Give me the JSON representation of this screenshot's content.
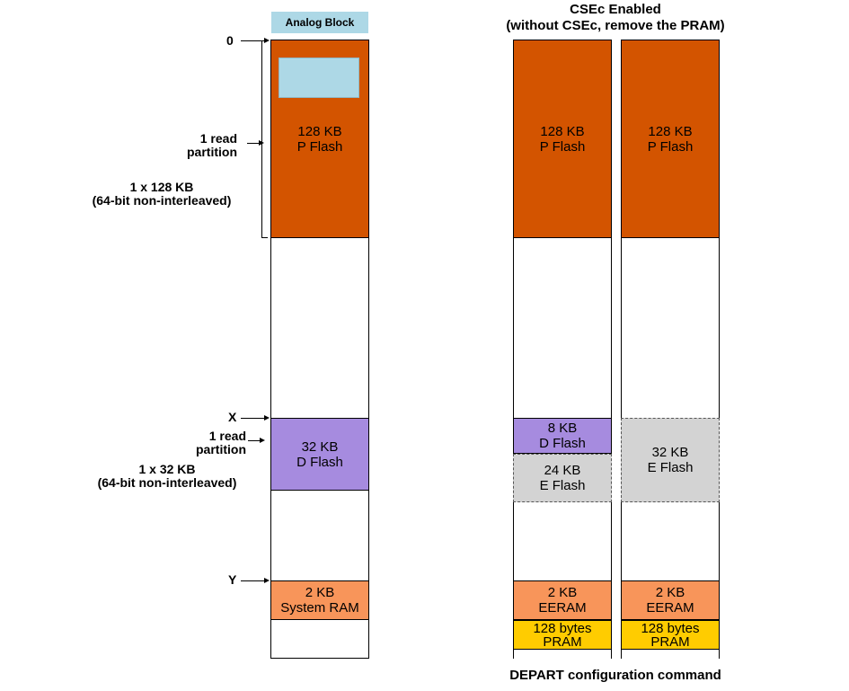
{
  "colors": {
    "pflash": "#d35400",
    "dflash": "#a68bdf",
    "eflash": "#d3d3d3",
    "ram": "#f8955a",
    "pram": "#ffcc00",
    "analog": "#add8e6"
  },
  "header": {
    "analog_block": "Analog Block",
    "csec_title": "CSEc Enabled",
    "csec_subtitle": "(without CSEc, remove the PRAM)"
  },
  "markers": {
    "zero": "0",
    "x": "X",
    "y": "Y"
  },
  "annotations": {
    "pflash_partition_l1": "1 read",
    "pflash_partition_l2": "partition",
    "pflash_size_l1": "1 x 128 KB",
    "pflash_size_l2": "(64-bit non-interleaved)",
    "dflash_partition_l1": "1 read",
    "dflash_partition_l2": "partition",
    "dflash_size_l1": "1 x 32 KB",
    "dflash_size_l2": "(64-bit non-interleaved)"
  },
  "left_column": {
    "pflash_size": "128 KB",
    "pflash_name": "P Flash",
    "dflash_size": "32 KB",
    "dflash_name": "D Flash",
    "ram_size": "2 KB",
    "ram_name": "System RAM"
  },
  "middle_column": {
    "pflash_size": "128 KB",
    "pflash_name": "P Flash",
    "dflash_size": "8 KB",
    "dflash_name": "D Flash",
    "eflash_size": "24 KB",
    "eflash_name": "E Flash",
    "eeram_size": "2 KB",
    "eeram_name": "EERAM",
    "pram_size": "128 bytes",
    "pram_name": "PRAM"
  },
  "right_column": {
    "pflash_size": "128 KB",
    "pflash_name": "P Flash",
    "eflash_size": "32 KB",
    "eflash_name": "E Flash",
    "eeram_size": "2 KB",
    "eeram_name": "EERAM",
    "pram_size": "128 bytes",
    "pram_name": "PRAM"
  },
  "footer": {
    "caption": "DEPART configuration command"
  }
}
